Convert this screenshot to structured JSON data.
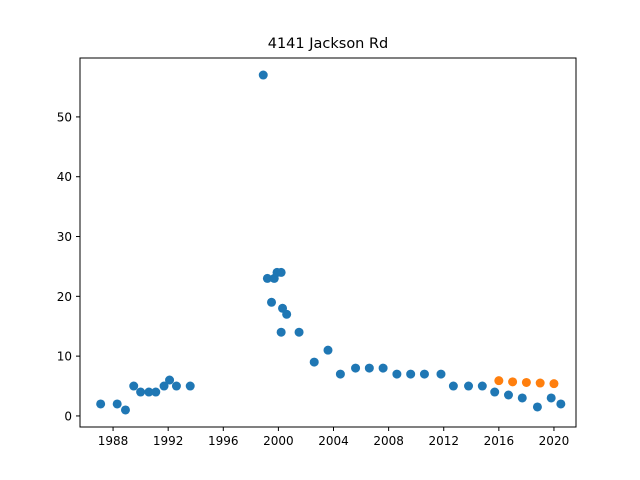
{
  "chart_data": {
    "type": "scatter",
    "title": "4141 Jackson Rd",
    "xlabel": "",
    "ylabel": "",
    "xlim": [
      1985.6,
      2021.6
    ],
    "ylim": [
      -1.85,
      59.85
    ],
    "xticks": [
      1988,
      1992,
      1996,
      2000,
      2004,
      2008,
      2012,
      2016,
      2020
    ],
    "yticks": [
      0,
      10,
      20,
      30,
      40,
      50
    ],
    "grid": false,
    "series": [
      {
        "color": "#1f77b4",
        "points": [
          {
            "x": 1987.1,
            "y": 2
          },
          {
            "x": 1988.3,
            "y": 2
          },
          {
            "x": 1988.9,
            "y": 1
          },
          {
            "x": 1989.5,
            "y": 5
          },
          {
            "x": 1990.0,
            "y": 4
          },
          {
            "x": 1990.6,
            "y": 4
          },
          {
            "x": 1991.1,
            "y": 4
          },
          {
            "x": 1991.7,
            "y": 5
          },
          {
            "x": 1992.1,
            "y": 6
          },
          {
            "x": 1992.6,
            "y": 5
          },
          {
            "x": 1993.6,
            "y": 5
          },
          {
            "x": 1998.9,
            "y": 57
          },
          {
            "x": 1999.2,
            "y": 23
          },
          {
            "x": 1999.5,
            "y": 19
          },
          {
            "x": 1999.7,
            "y": 23
          },
          {
            "x": 1999.9,
            "y": 24
          },
          {
            "x": 2000.2,
            "y": 24
          },
          {
            "x": 2000.2,
            "y": 14
          },
          {
            "x": 2000.3,
            "y": 18
          },
          {
            "x": 2000.6,
            "y": 17
          },
          {
            "x": 2001.5,
            "y": 14
          },
          {
            "x": 2002.6,
            "y": 9
          },
          {
            "x": 2003.6,
            "y": 11
          },
          {
            "x": 2004.5,
            "y": 7
          },
          {
            "x": 2005.6,
            "y": 8
          },
          {
            "x": 2006.6,
            "y": 8
          },
          {
            "x": 2007.6,
            "y": 8
          },
          {
            "x": 2008.6,
            "y": 7
          },
          {
            "x": 2009.6,
            "y": 7
          },
          {
            "x": 2010.6,
            "y": 7
          },
          {
            "x": 2011.8,
            "y": 7
          },
          {
            "x": 2012.7,
            "y": 5
          },
          {
            "x": 2013.8,
            "y": 5
          },
          {
            "x": 2014.8,
            "y": 5
          },
          {
            "x": 2015.7,
            "y": 4
          },
          {
            "x": 2016.7,
            "y": 3.5
          },
          {
            "x": 2017.7,
            "y": 3
          },
          {
            "x": 2018.8,
            "y": 1.5
          },
          {
            "x": 2019.8,
            "y": 3
          },
          {
            "x": 2020.5,
            "y": 2
          }
        ]
      },
      {
        "color": "#ff7f0e",
        "points": [
          {
            "x": 2016.0,
            "y": 5.9
          },
          {
            "x": 2017.0,
            "y": 5.7
          },
          {
            "x": 2018.0,
            "y": 5.6
          },
          {
            "x": 2019.0,
            "y": 5.5
          },
          {
            "x": 2020.0,
            "y": 5.4
          }
        ]
      }
    ]
  }
}
